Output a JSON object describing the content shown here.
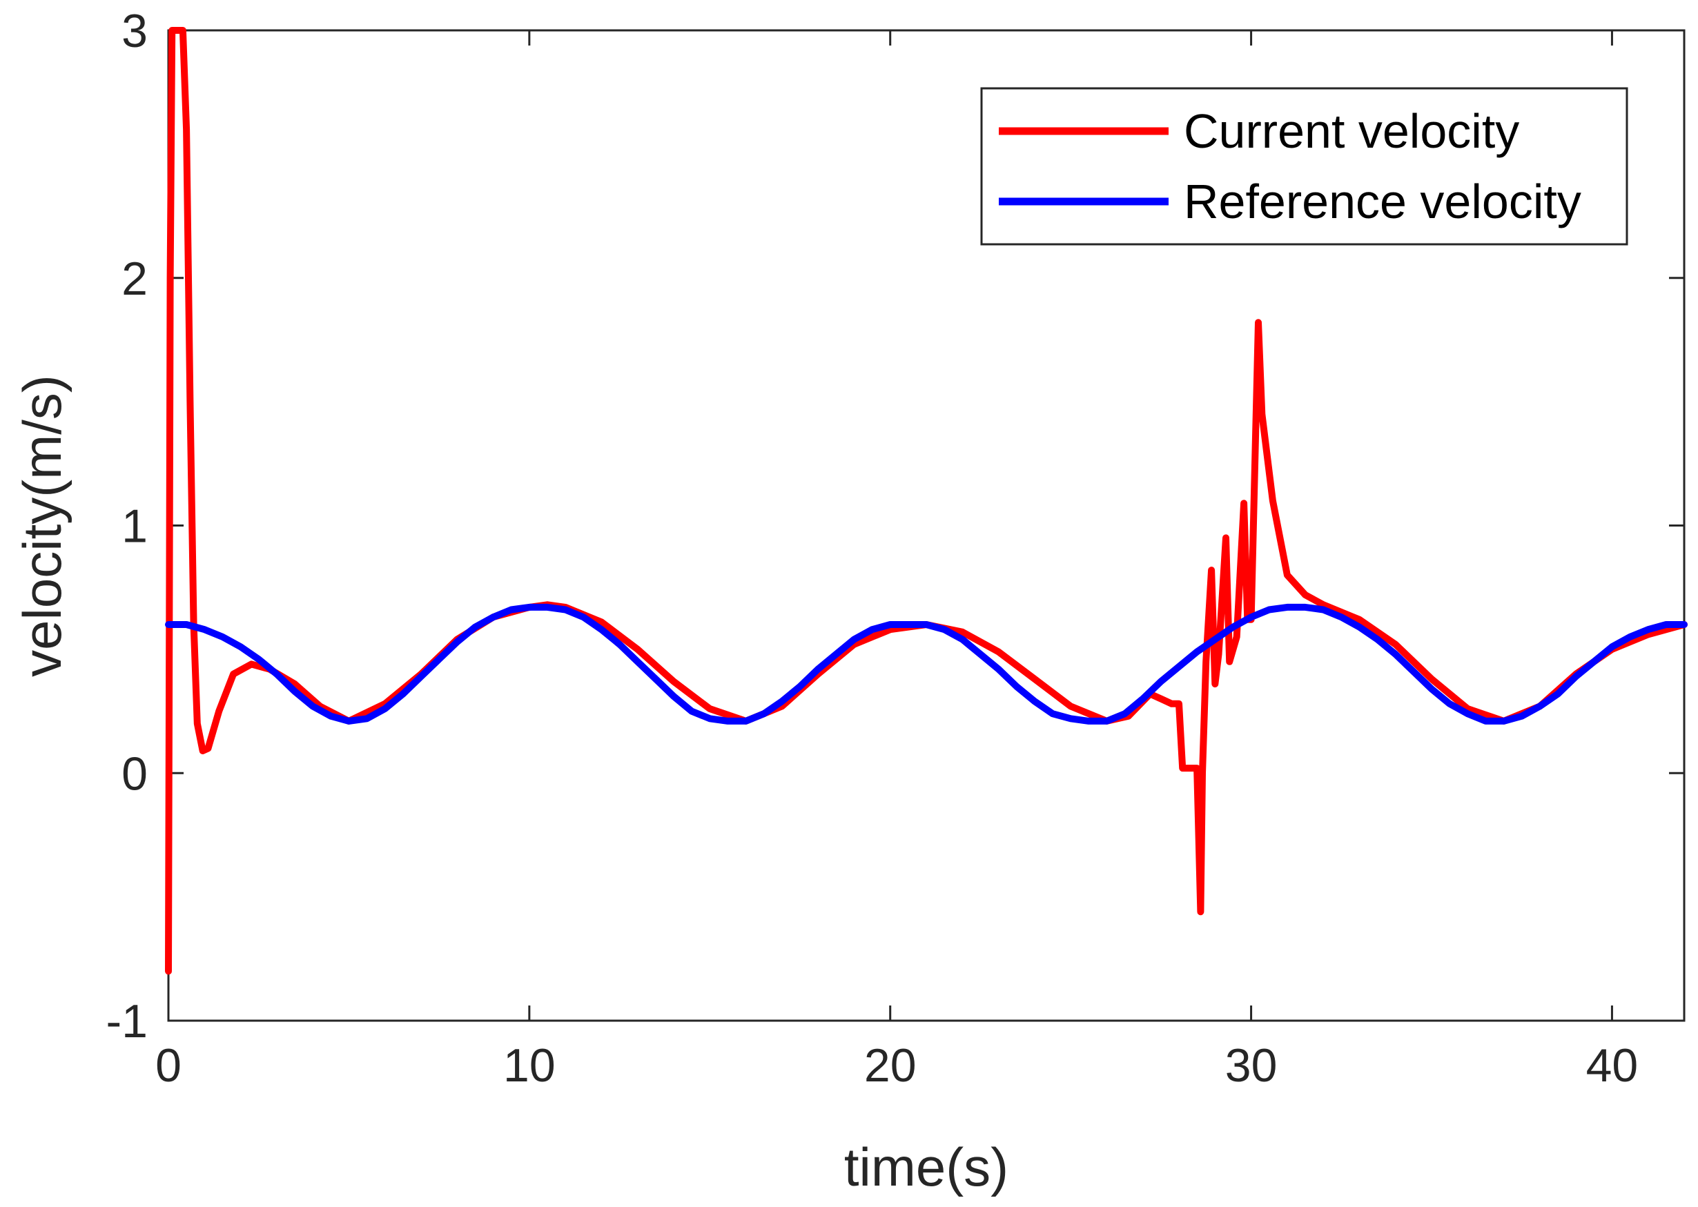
{
  "chart_data": {
    "type": "line",
    "title": "",
    "xlabel": "time(s)",
    "ylabel": "velocity(m/s)",
    "xlim": [
      0,
      42
    ],
    "ylim": [
      -1,
      3
    ],
    "xticks": [
      0,
      10,
      20,
      30,
      40
    ],
    "yticks": [
      -1,
      0,
      1,
      2,
      3
    ],
    "xtick_labels": [
      "0",
      "10",
      "20",
      "30",
      "40"
    ],
    "ytick_labels": [
      "-1",
      "0",
      "1",
      "2",
      "3"
    ],
    "grid": false,
    "legend_position": "top-right",
    "series": [
      {
        "name": "Current velocity",
        "color": "#ff0000",
        "x": [
          0,
          0.05,
          0.1,
          0.15,
          0.25,
          0.4,
          0.5,
          0.6,
          0.7,
          0.8,
          0.95,
          1.1,
          1.4,
          1.8,
          2.3,
          2.8,
          3.5,
          4.2,
          5.0,
          6.0,
          7.0,
          8.0,
          9.0,
          10.0,
          10.5,
          11.0,
          12.0,
          13.0,
          14.0,
          15.0,
          16.0,
          17.0,
          18.0,
          19.0,
          20.0,
          21.0,
          22.0,
          23.0,
          24.0,
          25.0,
          26.0,
          26.6,
          27.2,
          27.5,
          27.8,
          28.0,
          28.1,
          28.2,
          28.5,
          28.6,
          28.65,
          28.75,
          28.9,
          29.0,
          29.1,
          29.3,
          29.4,
          29.6,
          29.8,
          29.9,
          30.0,
          30.2,
          30.3,
          30.6,
          31.0,
          31.5,
          32.0,
          33.0,
          34.0,
          35.0,
          36.0,
          37.0,
          38.0,
          39.0,
          40.0,
          41.0,
          42.0
        ],
        "y": [
          -0.8,
          2.0,
          3.0,
          3.0,
          3.0,
          3.0,
          2.6,
          1.5,
          0.6,
          0.2,
          0.09,
          0.1,
          0.25,
          0.4,
          0.44,
          0.42,
          0.36,
          0.27,
          0.21,
          0.28,
          0.4,
          0.54,
          0.63,
          0.67,
          0.68,
          0.67,
          0.61,
          0.5,
          0.37,
          0.26,
          0.21,
          0.27,
          0.4,
          0.52,
          0.58,
          0.6,
          0.57,
          0.49,
          0.38,
          0.27,
          0.21,
          0.23,
          0.32,
          0.3,
          0.28,
          0.28,
          0.02,
          0.02,
          0.02,
          -0.56,
          0.0,
          0.45,
          0.82,
          0.36,
          0.48,
          0.95,
          0.45,
          0.55,
          1.09,
          0.62,
          0.62,
          1.82,
          1.45,
          1.1,
          0.8,
          0.72,
          0.68,
          0.62,
          0.52,
          0.38,
          0.26,
          0.21,
          0.27,
          0.4,
          0.5,
          0.56,
          0.6
        ]
      },
      {
        "name": "Reference velocity",
        "color": "#0000ff",
        "x": [
          0,
          0.5,
          1.0,
          1.5,
          2.0,
          2.5,
          3.0,
          3.5,
          4.0,
          4.5,
          5.0,
          5.5,
          6.0,
          6.5,
          7.0,
          7.5,
          8.0,
          8.5,
          9.0,
          9.5,
          10.0,
          10.5,
          11.0,
          11.5,
          12.0,
          12.5,
          13.0,
          13.5,
          14.0,
          14.5,
          15.0,
          15.5,
          16.0,
          16.5,
          17.0,
          17.5,
          18.0,
          18.5,
          19.0,
          19.5,
          20.0,
          20.5,
          21.0,
          21.5,
          22.0,
          22.5,
          23.0,
          23.5,
          24.0,
          24.5,
          25.0,
          25.5,
          26.0,
          26.5,
          27.0,
          27.5,
          28.0,
          28.5,
          29.0,
          29.5,
          30.0,
          30.5,
          31.0,
          31.5,
          32.0,
          32.5,
          33.0,
          33.5,
          34.0,
          34.5,
          35.0,
          35.5,
          36.0,
          36.5,
          37.0,
          37.5,
          38.0,
          38.5,
          39.0,
          39.5,
          40.0,
          40.5,
          41.0,
          41.5,
          42.0
        ],
        "y": [
          0.6,
          0.6,
          0.58,
          0.55,
          0.51,
          0.46,
          0.4,
          0.33,
          0.27,
          0.23,
          0.21,
          0.22,
          0.26,
          0.32,
          0.39,
          0.46,
          0.53,
          0.59,
          0.63,
          0.66,
          0.67,
          0.67,
          0.66,
          0.63,
          0.58,
          0.52,
          0.45,
          0.38,
          0.31,
          0.25,
          0.22,
          0.21,
          0.21,
          0.24,
          0.29,
          0.35,
          0.42,
          0.48,
          0.54,
          0.58,
          0.6,
          0.6,
          0.6,
          0.58,
          0.54,
          0.48,
          0.42,
          0.35,
          0.29,
          0.24,
          0.22,
          0.21,
          0.21,
          0.24,
          0.3,
          0.37,
          0.43,
          0.49,
          0.54,
          0.59,
          0.63,
          0.66,
          0.67,
          0.67,
          0.66,
          0.63,
          0.59,
          0.54,
          0.48,
          0.41,
          0.34,
          0.28,
          0.24,
          0.21,
          0.21,
          0.23,
          0.27,
          0.32,
          0.39,
          0.45,
          0.51,
          0.55,
          0.58,
          0.6,
          0.6
        ]
      }
    ]
  }
}
